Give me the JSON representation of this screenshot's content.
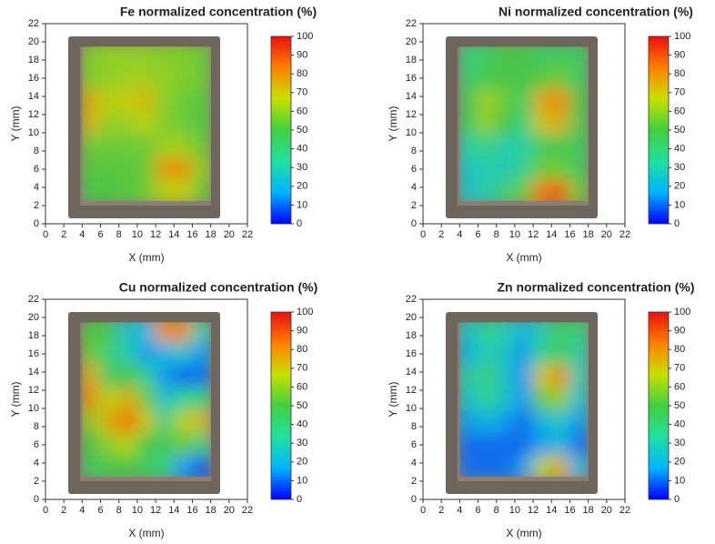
{
  "chart_data": [
    {
      "type": "heatmap",
      "title": "Fe normalized concentration (%)",
      "xlabel": "X (mm)",
      "ylabel": "Y (mm)",
      "x": [
        5,
        7,
        9,
        11,
        13,
        15,
        17
      ],
      "y": [
        18.5,
        16,
        13.5,
        11,
        8.5,
        6,
        3.5
      ],
      "z": [
        [
          58,
          60,
          60,
          60,
          58,
          58,
          55
        ],
        [
          58,
          60,
          62,
          62,
          60,
          58,
          55
        ],
        [
          75,
          65,
          68,
          72,
          60,
          55,
          52
        ],
        [
          72,
          60,
          62,
          65,
          58,
          55,
          52
        ],
        [
          55,
          55,
          55,
          55,
          62,
          62,
          55
        ],
        [
          52,
          52,
          52,
          55,
          78,
          80,
          60
        ],
        [
          50,
          50,
          52,
          55,
          65,
          68,
          55
        ]
      ],
      "xlim": [
        0,
        22
      ],
      "ylim": [
        0,
        22
      ],
      "xticks": [
        0,
        2,
        4,
        6,
        8,
        10,
        12,
        14,
        16,
        18,
        20,
        22
      ],
      "yticks": [
        0,
        2,
        4,
        6,
        8,
        10,
        12,
        14,
        16,
        18,
        20,
        22
      ],
      "clim": [
        0,
        100
      ],
      "cticks": [
        0,
        10,
        20,
        30,
        40,
        50,
        60,
        70,
        80,
        90,
        100
      ],
      "colormap": [
        "#0000ff",
        "#00b4ff",
        "#20e0a0",
        "#40d040",
        "#c8e000",
        "#ff8000",
        "#e81010"
      ]
    },
    {
      "type": "heatmap",
      "title": "Ni normalized concentration (%)",
      "xlabel": "X (mm)",
      "ylabel": "Y (mm)",
      "x": [
        5,
        7,
        9,
        11,
        13,
        15,
        17
      ],
      "y": [
        18.5,
        16,
        13.5,
        11,
        8.5,
        6,
        3.5
      ],
      "z": [
        [
          40,
          45,
          50,
          50,
          45,
          45,
          45
        ],
        [
          42,
          48,
          50,
          48,
          52,
          55,
          45
        ],
        [
          48,
          62,
          55,
          45,
          75,
          82,
          50
        ],
        [
          45,
          60,
          50,
          40,
          70,
          75,
          48
        ],
        [
          32,
          38,
          30,
          32,
          45,
          48,
          45
        ],
        [
          25,
          30,
          28,
          35,
          55,
          55,
          45
        ],
        [
          25,
          30,
          40,
          55,
          85,
          88,
          55
        ]
      ],
      "xlim": [
        0,
        22
      ],
      "ylim": [
        0,
        22
      ],
      "xticks": [
        0,
        2,
        4,
        6,
        8,
        10,
        12,
        14,
        16,
        18,
        20,
        22
      ],
      "yticks": [
        0,
        2,
        4,
        6,
        8,
        10,
        12,
        14,
        16,
        18,
        20,
        22
      ],
      "clim": [
        0,
        100
      ],
      "cticks": [
        0,
        10,
        20,
        30,
        40,
        50,
        60,
        70,
        80,
        90,
        100
      ],
      "colormap": [
        "#0000ff",
        "#00b4ff",
        "#20e0a0",
        "#40d040",
        "#c8e000",
        "#ff8000",
        "#e81010"
      ]
    },
    {
      "type": "heatmap",
      "title": "Cu normalized concentration (%)",
      "xlabel": "X (mm)",
      "ylabel": "Y (mm)",
      "x": [
        5,
        7,
        9,
        11,
        13,
        15,
        17
      ],
      "y": [
        18.5,
        16,
        13.5,
        11,
        8.5,
        6,
        3.5
      ],
      "z": [
        [
          50,
          48,
          25,
          20,
          80,
          80,
          30
        ],
        [
          55,
          40,
          30,
          15,
          20,
          25,
          15
        ],
        [
          75,
          45,
          50,
          35,
          15,
          10,
          10
        ],
        [
          80,
          65,
          75,
          55,
          25,
          35,
          40
        ],
        [
          60,
          75,
          85,
          70,
          40,
          65,
          72
        ],
        [
          50,
          60,
          65,
          50,
          45,
          55,
          40
        ],
        [
          45,
          50,
          50,
          45,
          40,
          15,
          8
        ]
      ],
      "xlim": [
        0,
        22
      ],
      "ylim": [
        0,
        22
      ],
      "xticks": [
        0,
        2,
        4,
        6,
        8,
        10,
        12,
        14,
        16,
        18,
        20,
        22
      ],
      "yticks": [
        0,
        2,
        4,
        6,
        8,
        10,
        12,
        14,
        16,
        18,
        20,
        22
      ],
      "clim": [
        0,
        100
      ],
      "cticks": [
        0,
        10,
        20,
        30,
        40,
        50,
        60,
        70,
        80,
        90,
        100
      ],
      "colormap": [
        "#0000ff",
        "#00b4ff",
        "#20e0a0",
        "#40d040",
        "#c8e000",
        "#ff8000",
        "#e81010"
      ]
    },
    {
      "type": "heatmap",
      "title": "Zn normalized concentration (%)",
      "xlabel": "X (mm)",
      "ylabel": "Y (mm)",
      "x": [
        5,
        7,
        9,
        11,
        13,
        15,
        17
      ],
      "y": [
        18.5,
        16,
        13.5,
        11,
        8.5,
        6,
        3.5
      ],
      "z": [
        [
          25,
          35,
          30,
          20,
          30,
          45,
          40
        ],
        [
          20,
          30,
          25,
          15,
          35,
          45,
          30
        ],
        [
          30,
          40,
          25,
          15,
          70,
          80,
          30
        ],
        [
          25,
          35,
          25,
          15,
          55,
          60,
          25
        ],
        [
          15,
          20,
          15,
          10,
          20,
          25,
          15
        ],
        [
          10,
          10,
          10,
          10,
          15,
          20,
          10
        ],
        [
          10,
          10,
          10,
          15,
          65,
          75,
          20
        ]
      ],
      "xlim": [
        0,
        22
      ],
      "ylim": [
        0,
        22
      ],
      "xticks": [
        0,
        2,
        4,
        6,
        8,
        10,
        12,
        14,
        16,
        18,
        20,
        22
      ],
      "yticks": [
        0,
        2,
        4,
        6,
        8,
        10,
        12,
        14,
        16,
        18,
        20,
        22
      ],
      "clim": [
        0,
        100
      ],
      "cticks": [
        0,
        10,
        20,
        30,
        40,
        50,
        60,
        70,
        80,
        90,
        100
      ],
      "colormap": [
        "#0000ff",
        "#00b4ff",
        "#20e0a0",
        "#40d040",
        "#c8e000",
        "#ff8000",
        "#e81010"
      ]
    }
  ]
}
